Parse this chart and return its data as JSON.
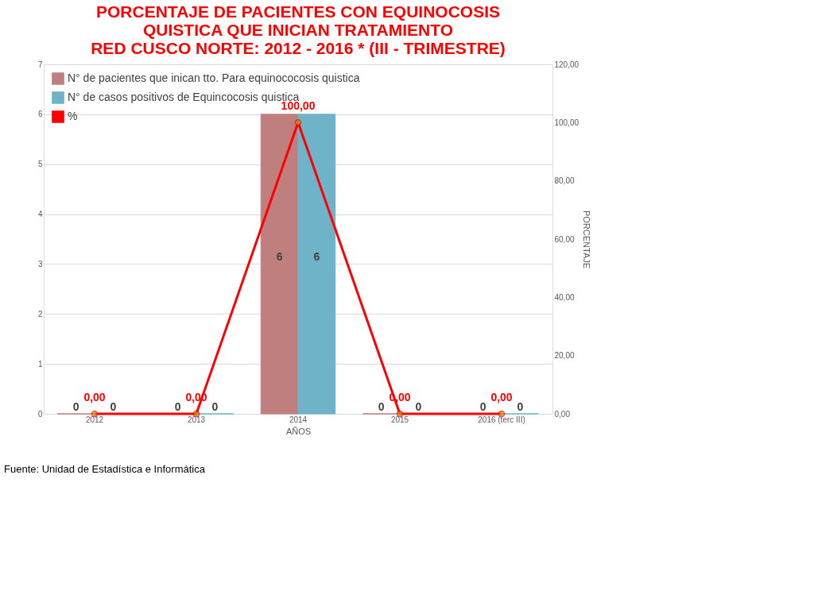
{
  "chart_data": {
    "type": "bar",
    "title": "PORCENTAJE DE PACIENTES CON EQUINOCOSIS\nQUISTICA QUE INICIAN TRATAMIENTO\nRED CUSCO NORTE: 2012 - 2016 * (III - TRIMESTRE)",
    "xlabel": "AÑOS",
    "y2label": "PORCENTAJE",
    "categories": [
      "2012",
      "2013",
      "2014",
      "2015",
      "2016 (terc III)"
    ],
    "series": [
      {
        "name": "N° de pacientes que inican tto. Para equinococosis quistica",
        "color": "#c07f7f",
        "values": [
          0,
          0,
          6,
          0,
          0
        ],
        "value_labels": [
          "0",
          "0",
          "6",
          "0",
          "0"
        ]
      },
      {
        "name": "N° de casos positivos de Equincocosis quistica",
        "color": "#6fb3c8",
        "values": [
          0,
          0,
          6,
          0,
          0
        ],
        "value_labels": [
          "0",
          "0",
          "6",
          "0",
          "0"
        ]
      },
      {
        "name": "%",
        "type": "line",
        "axis": "y2",
        "color": "#ff0000",
        "values": [
          0,
          0,
          100,
          0,
          0
        ],
        "value_labels": [
          "0,00",
          "0,00",
          "100,00",
          "0,00",
          "0,00"
        ]
      }
    ],
    "ylim": [
      0,
      7
    ],
    "yticks": [
      0,
      1,
      2,
      3,
      4,
      5,
      6,
      7
    ],
    "y2lim": [
      0,
      120
    ],
    "y2ticks": [
      {
        "value": 0,
        "label": "0,00"
      },
      {
        "value": 20,
        "label": "20,00"
      },
      {
        "value": 40,
        "label": "40,00"
      },
      {
        "value": 60,
        "label": "60,00"
      },
      {
        "value": 80,
        "label": "80,00"
      },
      {
        "value": 100,
        "label": "100,00"
      },
      {
        "value": 120,
        "label": "120,00"
      }
    ],
    "grid": "y",
    "legend": "top left",
    "marker": "circle",
    "line_style": "solid",
    "annotations": [
      "Fuente: Unidad de Estadística e Informática"
    ]
  }
}
